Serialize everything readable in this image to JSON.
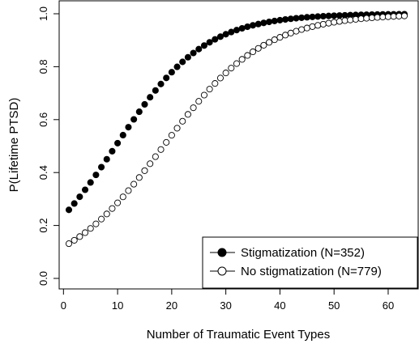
{
  "chart_data": {
    "type": "scatter",
    "xlabel": "Number of Traumatic Event Types",
    "ylabel": "P(Lifetime PTSD)",
    "xlim": [
      1,
      63
    ],
    "ylim": [
      0,
      1
    ],
    "xticks": [
      "0",
      "10",
      "20",
      "30",
      "40",
      "50",
      "60"
    ],
    "yticks": [
      "0.0",
      "0.2",
      "0.4",
      "0.6",
      "0.8",
      "1.0"
    ],
    "grid": false,
    "legend_position": "bottom-right",
    "model": "logistic",
    "series": [
      {
        "name": "Stigmatization (N=352)",
        "marker": "filled-circle",
        "color": "#000000",
        "x_start": 1,
        "x_end": 63,
        "intercept": -1.173,
        "slope": 0.1217
      },
      {
        "name": "No stigmatization (N=779)",
        "marker": "open-circle",
        "color": "#000000",
        "x_start": 1,
        "x_end": 63,
        "intercept": -1.998,
        "slope": 0.1081
      }
    ]
  }
}
